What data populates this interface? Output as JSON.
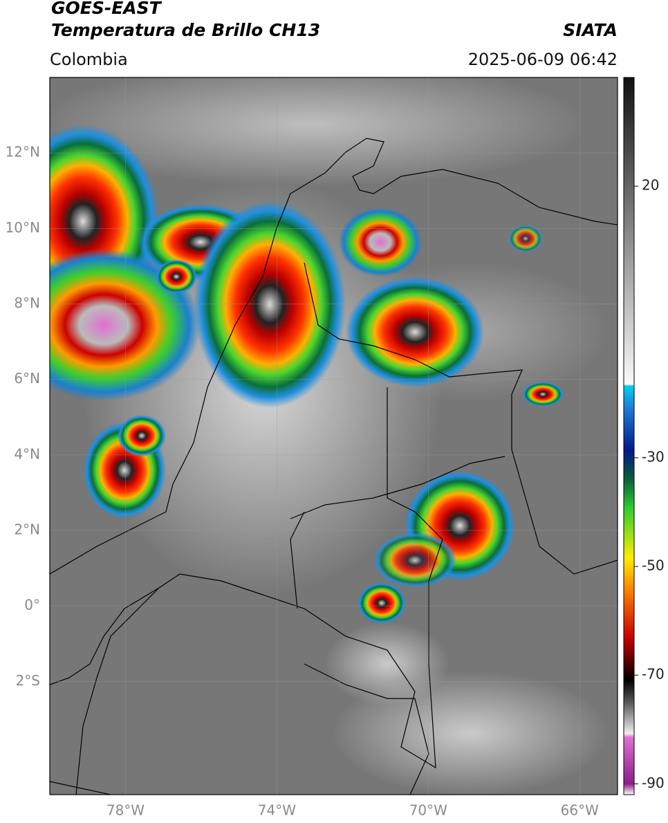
{
  "header": {
    "title": "GOES-EAST",
    "subtitle": "Temperatura de Brillo CH13",
    "source": "SIATA",
    "region": "Colombia",
    "datetime": "2025-06-09 06:42"
  },
  "map": {
    "xlim": [
      -80,
      -65
    ],
    "ylim": [
      -5,
      14
    ],
    "xticks": [
      {
        "value": -78,
        "label": "78°W"
      },
      {
        "value": -74,
        "label": "74°W"
      },
      {
        "value": -70,
        "label": "70°W"
      },
      {
        "value": -66,
        "label": "66°W"
      }
    ],
    "yticks": [
      {
        "value": 12,
        "label": "12°N"
      },
      {
        "value": 10,
        "label": "10°N"
      },
      {
        "value": 8,
        "label": "8°N"
      },
      {
        "value": 6,
        "label": "6°N"
      },
      {
        "value": 4,
        "label": "4°N"
      },
      {
        "value": 2,
        "label": "2°N"
      },
      {
        "value": 0,
        "label": "0°"
      },
      {
        "value": -2,
        "label": "2°S"
      }
    ],
    "grid": true
  },
  "colorbar": {
    "lim": [
      -92,
      40
    ],
    "ticks": [
      20,
      -30,
      -50,
      -70,
      -90
    ]
  }
}
